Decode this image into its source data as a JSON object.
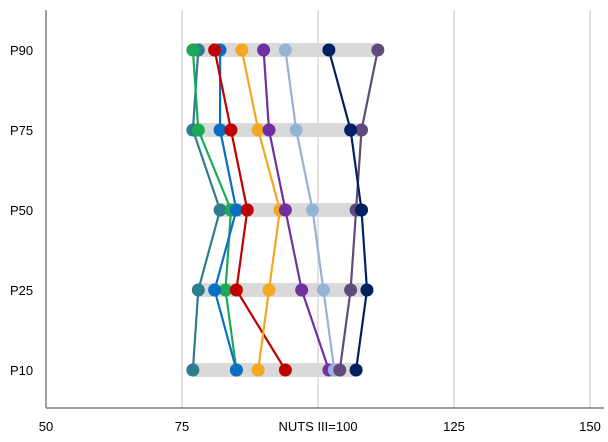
{
  "chart_data": {
    "type": "scatter",
    "title": "",
    "xlabel": "NUTS III=100",
    "ylabel": "",
    "xlim": [
      50,
      150
    ],
    "x_ticks": [
      {
        "value": 50,
        "label": "50"
      },
      {
        "value": 75,
        "label": "75"
      },
      {
        "value": 100,
        "label": "NUTS III=100"
      },
      {
        "value": 125,
        "label": "125"
      },
      {
        "value": 150,
        "label": "150"
      }
    ],
    "categories": [
      "P90",
      "P75",
      "P50",
      "P25",
      "P10"
    ],
    "grid": true,
    "range_bars": [
      {
        "category": "P90",
        "min": 77,
        "max": 111
      },
      {
        "category": "P75",
        "min": 77,
        "max": 108
      },
      {
        "category": "P50",
        "min": 82,
        "max": 108
      },
      {
        "category": "P25",
        "min": 78,
        "max": 109
      },
      {
        "category": "P10",
        "min": 77,
        "max": 107
      }
    ],
    "series": [
      {
        "color": "#2e7d8e",
        "values": [
          78,
          77,
          82,
          78,
          77
        ]
      },
      {
        "color": "#1aaa55",
        "values": [
          77,
          78,
          84,
          83,
          85
        ]
      },
      {
        "color": "#0a6fc2",
        "values": [
          82,
          82,
          85,
          81,
          85
        ]
      },
      {
        "color": "#c00000",
        "values": [
          81,
          84,
          87,
          85,
          94
        ]
      },
      {
        "color": "#f5a623",
        "values": [
          86,
          89,
          93,
          91,
          89
        ]
      },
      {
        "color": "#7030a0",
        "values": [
          90,
          91,
          94,
          97,
          102
        ]
      },
      {
        "color": "#95b3d7",
        "values": [
          94,
          96,
          99,
          101,
          103
        ]
      },
      {
        "color": "#604a7b",
        "values": [
          111,
          108,
          107,
          106,
          104
        ]
      },
      {
        "color": "#002060",
        "values": [
          102,
          106,
          108,
          109,
          107
        ]
      }
    ]
  }
}
